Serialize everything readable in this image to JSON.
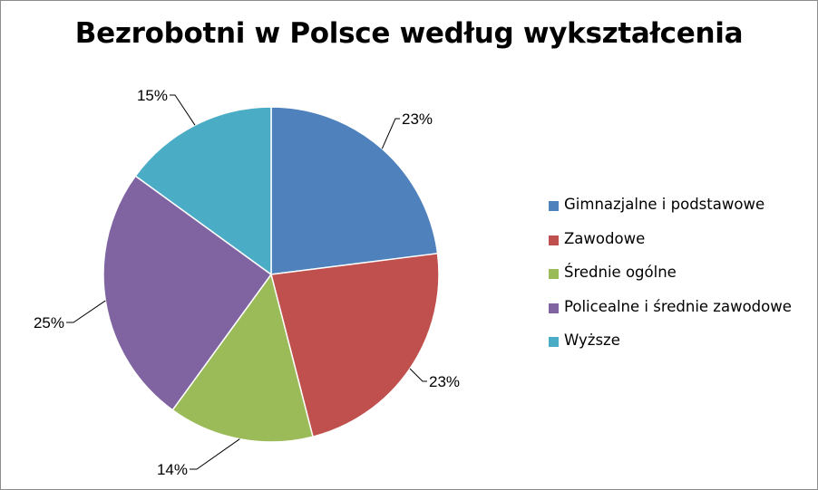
{
  "chart_data": {
    "type": "pie",
    "title": "Bezrobotni w Polsce według wykształcenia",
    "categories": [
      "Gimnazjalne i podstawowe",
      "Zawodowe",
      "Średnie ogólne",
      "Policealne i średnie zawodowe",
      "Wyższe"
    ],
    "values": [
      23,
      23,
      14,
      25,
      15
    ],
    "labels": [
      "23%",
      "23%",
      "14%",
      "25%",
      "15%"
    ],
    "colors": [
      "#4F81BD",
      "#C0504D",
      "#9BBB59",
      "#8064A2",
      "#4BACC6"
    ],
    "start_angle": "12 o'clock",
    "direction": "clockwise",
    "legend": "right"
  }
}
